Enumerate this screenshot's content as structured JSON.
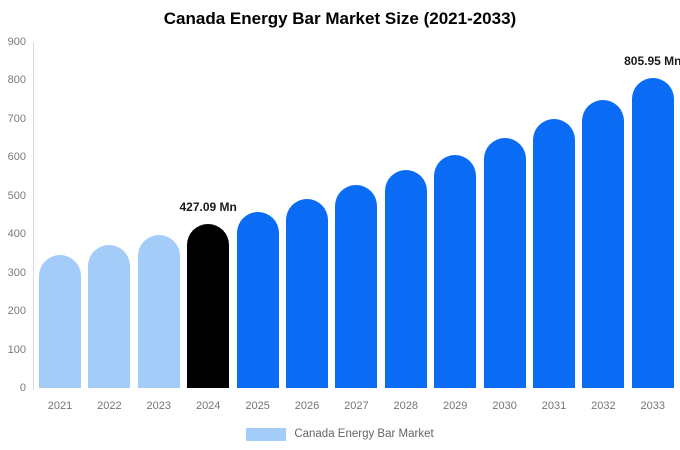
{
  "title": "Canada Energy Bar Market Size (2021-2033)",
  "chart_data": {
    "type": "bar",
    "title": "Canada Energy Bar Market Size (2021-2033)",
    "categories": [
      "2021",
      "2022",
      "2023",
      "2024",
      "2025",
      "2026",
      "2027",
      "2028",
      "2029",
      "2030",
      "2031",
      "2032",
      "2033"
    ],
    "values": [
      346,
      371,
      398,
      427.09,
      458,
      492,
      527,
      566,
      607,
      651,
      699,
      750,
      805.95
    ],
    "bar_colors": [
      "#A3CCF8",
      "#A3CCF8",
      "#A3CCF8",
      "#000000",
      "#0A6CF5",
      "#0A6CF5",
      "#0A6CF5",
      "#0A6CF5",
      "#0A6CF5",
      "#0A6CF5",
      "#0A6CF5",
      "#0A6CF5",
      "#0A6CF5"
    ],
    "annotations": [
      {
        "category": "2024",
        "text": "427.09 Mn"
      },
      {
        "category": "2033",
        "text": "805.95 Mn"
      }
    ],
    "xlabel": "",
    "ylabel": "",
    "ylim": [
      0,
      900
    ],
    "yticks": [
      0,
      100,
      200,
      300,
      400,
      500,
      600,
      700,
      800,
      900
    ],
    "grid": false,
    "legend_position": "bottom",
    "legend": [
      {
        "label": "Canada Energy Bar Market",
        "color": "#A3CCF8"
      }
    ]
  },
  "colors": {
    "axis_line": "#d9d9d9",
    "tick_text": "#7a7a7a",
    "annotation_text": "#1a1a1a",
    "past_bar": "#A3CCF8",
    "highlight_bar": "#000000",
    "forecast_bar": "#0A6CF5"
  }
}
